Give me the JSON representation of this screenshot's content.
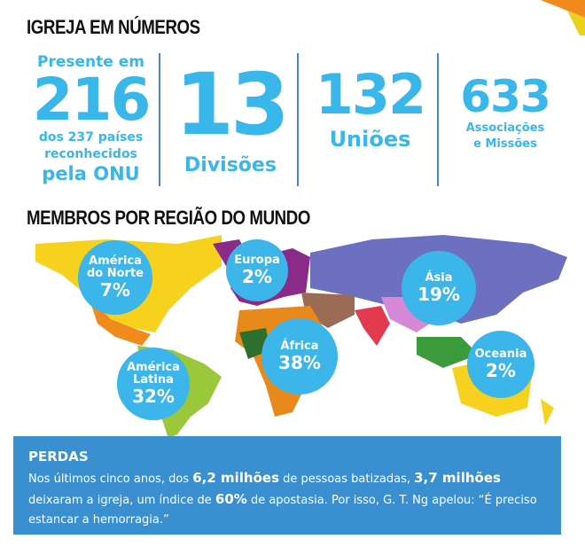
{
  "header": {
    "title": "IGREJA EM NÚMEROS"
  },
  "stats": [
    {
      "pre": "Presente em",
      "number": "216",
      "caption_lines": [
        "dos 237 países",
        "reconhecidos"
      ],
      "caption_big": "pela ONU"
    },
    {
      "number": "13",
      "caption": "Divisões"
    },
    {
      "number": "132",
      "caption": "Uniões"
    },
    {
      "number": "633",
      "caption_lines": [
        "Associações",
        "e Missões"
      ]
    }
  ],
  "map": {
    "title": "MEMBROS POR REGIÃO DO MUNDO",
    "regions": [
      {
        "label": [
          "América",
          "do Norte"
        ],
        "pct": "7%"
      },
      {
        "label": [
          "Europa"
        ],
        "pct": "2%"
      },
      {
        "label": [
          "Ásia"
        ],
        "pct": "19%"
      },
      {
        "label": [
          "África"
        ],
        "pct": "38%"
      },
      {
        "label": [
          "América",
          "Latina"
        ],
        "pct": "32%"
      },
      {
        "label": [
          "Oceania"
        ],
        "pct": "2%"
      }
    ],
    "circle_color": "#3bb5ea"
  },
  "losses": {
    "title": "PERDAS",
    "t1": "Nos últimos cinco anos, dos ",
    "b1": "6,2 milhões",
    "t2": " de pessoas batizadas, ",
    "b2": "3,7 milhões",
    "t3": " deixaram a igreja, um índice de ",
    "b3": "60%",
    "t4": " de apostasia. Por isso, G. T. Ng apelou: “É preciso estancar a hemorragia.”",
    "bg_color": "#3a8fd0"
  }
}
